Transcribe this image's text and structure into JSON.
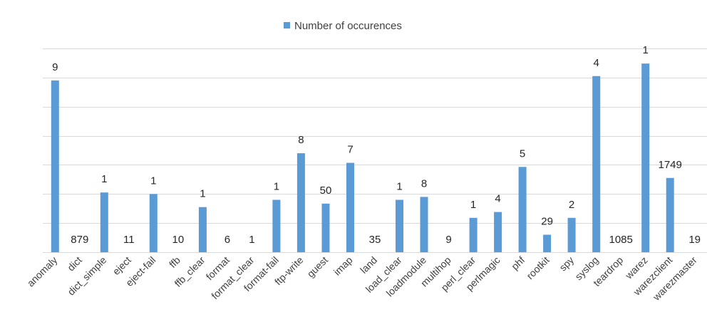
{
  "chart_data": {
    "type": "bar",
    "legend": {
      "position": "top",
      "entries": [
        "Number of occurences"
      ]
    },
    "grid": true,
    "ylim": [
      0,
      7
    ],
    "categories": [
      "anomaly",
      "dict",
      "dict_simple",
      "eject",
      "eject-fail",
      "ffb",
      "ffb_clear",
      "format",
      "format_clear",
      "format-fail",
      "ftp-write",
      "guest",
      "imap",
      "land",
      "load_clear",
      "loadmodule",
      "multihop",
      "perl_clear",
      "perlmagic",
      "phf",
      "rootkit",
      "spy",
      "syslog",
      "teardrop",
      "warez",
      "warezclient",
      "warezmaster"
    ],
    "series": [
      {
        "name": "Number of occurences",
        "color": "#5b9bd5",
        "values": [
          5.9,
          0,
          2.05,
          0,
          2.0,
          0,
          1.55,
          0,
          0,
          1.8,
          3.4,
          1.67,
          3.07,
          0,
          1.8,
          1.9,
          0,
          1.18,
          1.38,
          2.93,
          0.6,
          1.18,
          6.05,
          0,
          6.48,
          2.55,
          0
        ],
        "labels": [
          "9",
          "879",
          "1",
          "11",
          "1",
          "10",
          "1",
          "6",
          "1",
          "1",
          "8",
          "50",
          "7",
          "35",
          "1",
          "8",
          "9",
          "1",
          "4",
          "5",
          "29",
          "2",
          "4",
          "1085",
          "1",
          "1749",
          "19"
        ]
      }
    ]
  }
}
